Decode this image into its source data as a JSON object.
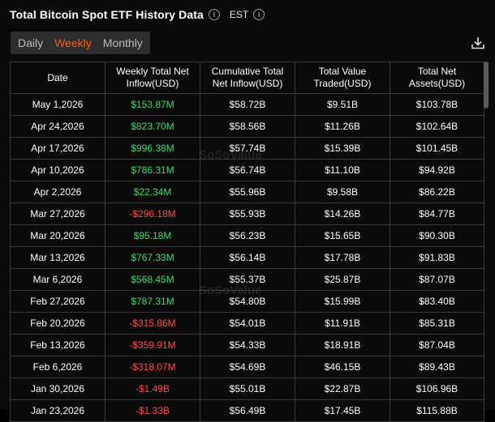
{
  "header": {
    "title": "Total Bitcoin Spot ETF History Data",
    "timezone": "EST"
  },
  "tabs": [
    "Daily",
    "Weekly",
    "Monthly"
  ],
  "active_tab": "Weekly",
  "watermark": "SoSoValue",
  "table": {
    "columns": [
      "Date",
      "Weekly Total Net Inflow(USD)",
      "Cumulative Total Net Inflow(USD)",
      "Total Value Traded(USD)",
      "Total Net Assets(USD)"
    ],
    "rows": [
      {
        "date": "May 1,2026",
        "inflow": "$153.87M",
        "sign": "pos",
        "cumulative": "$58.72B",
        "traded": "$9.51B",
        "assets": "$103.78B"
      },
      {
        "date": "Apr 24,2026",
        "inflow": "$823.70M",
        "sign": "pos",
        "cumulative": "$58.56B",
        "traded": "$11.26B",
        "assets": "$102.64B"
      },
      {
        "date": "Apr 17,2026",
        "inflow": "$996.38M",
        "sign": "pos",
        "cumulative": "$57.74B",
        "traded": "$15.39B",
        "assets": "$101.45B"
      },
      {
        "date": "Apr 10,2026",
        "inflow": "$786.31M",
        "sign": "pos",
        "cumulative": "$56.74B",
        "traded": "$11.10B",
        "assets": "$94.92B"
      },
      {
        "date": "Apr 2,2026",
        "inflow": "$22.34M",
        "sign": "pos",
        "cumulative": "$55.96B",
        "traded": "$9.58B",
        "assets": "$86.22B"
      },
      {
        "date": "Mar 27,2026",
        "inflow": "-$296.18M",
        "sign": "neg",
        "cumulative": "$55.93B",
        "traded": "$14.26B",
        "assets": "$84.77B"
      },
      {
        "date": "Mar 20,2026",
        "inflow": "$95.18M",
        "sign": "pos",
        "cumulative": "$56.23B",
        "traded": "$15.65B",
        "assets": "$90.30B"
      },
      {
        "date": "Mar 13,2026",
        "inflow": "$767.33M",
        "sign": "pos",
        "cumulative": "$56.14B",
        "traded": "$17.78B",
        "assets": "$91.83B"
      },
      {
        "date": "Mar 6,2026",
        "inflow": "$568.45M",
        "sign": "pos",
        "cumulative": "$55.37B",
        "traded": "$25.87B",
        "assets": "$87.07B"
      },
      {
        "date": "Feb 27,2026",
        "inflow": "$787.31M",
        "sign": "pos",
        "cumulative": "$54.80B",
        "traded": "$15.99B",
        "assets": "$83.40B"
      },
      {
        "date": "Feb 20,2026",
        "inflow": "-$315.86M",
        "sign": "neg",
        "cumulative": "$54.01B",
        "traded": "$11.91B",
        "assets": "$85.31B"
      },
      {
        "date": "Feb 13,2026",
        "inflow": "-$359.91M",
        "sign": "neg",
        "cumulative": "$54.33B",
        "traded": "$18.91B",
        "assets": "$87.04B"
      },
      {
        "date": "Feb 6,2026",
        "inflow": "-$318.07M",
        "sign": "neg",
        "cumulative": "$54.69B",
        "traded": "$46.15B",
        "assets": "$89.43B"
      },
      {
        "date": "Jan 30,2026",
        "inflow": "-$1.49B",
        "sign": "neg",
        "cumulative": "$55.01B",
        "traded": "$22.87B",
        "assets": "$106.96B"
      },
      {
        "date": "Jan 23,2026",
        "inflow": "-$1.33B",
        "sign": "neg",
        "cumulative": "$56.49B",
        "traded": "$17.45B",
        "assets": "$115.88B"
      }
    ]
  },
  "colors": {
    "positive": "#3ddc6a",
    "negative": "#ff4d4d",
    "accent": "#ff5a1f"
  },
  "icons": {
    "info": "info-icon",
    "download": "download-icon"
  }
}
